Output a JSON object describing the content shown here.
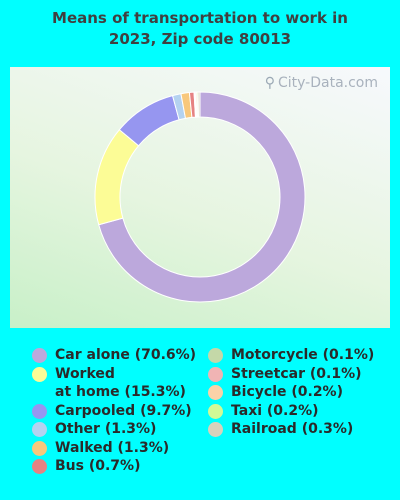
{
  "title": {
    "line1": "Means of transportation to work in",
    "line2": "2023, Zip code 80013"
  },
  "watermark": "City-Data.com",
  "chart_data": {
    "type": "pie",
    "donut": true,
    "title": "Means of transportation to work in 2023, Zip code 80013",
    "slices": [
      {
        "label": "Car alone",
        "value": 70.6,
        "color": "#bca8dc"
      },
      {
        "label": "Worked at home",
        "value": 15.3,
        "color": "#fcfc96"
      },
      {
        "label": "Carpooled",
        "value": 9.7,
        "color": "#9696f0"
      },
      {
        "label": "Other",
        "value": 1.3,
        "color": "#b4d2f0"
      },
      {
        "label": "Walked",
        "value": 1.3,
        "color": "#f8c87c"
      },
      {
        "label": "Bus",
        "value": 0.7,
        "color": "#e68282"
      },
      {
        "label": "Motorcycle",
        "value": 0.1,
        "color": "#c4d8a8"
      },
      {
        "label": "Streetcar",
        "value": 0.1,
        "color": "#f0b4b4"
      },
      {
        "label": "Bicycle",
        "value": 0.2,
        "color": "#fad2a8"
      },
      {
        "label": "Taxi",
        "value": 0.2,
        "color": "#d2fa96"
      },
      {
        "label": "Railroad",
        "value": 0.3,
        "color": "#d8d2bc"
      }
    ]
  },
  "legend": {
    "left": [
      {
        "lines": [
          "Car alone (70.6%)"
        ],
        "color": "#bca8dc"
      },
      {
        "lines": [
          "Worked",
          "at home (15.3%)"
        ],
        "color": "#fcfc96"
      },
      {
        "lines": [
          "Carpooled (9.7%)"
        ],
        "color": "#9696f0"
      },
      {
        "lines": [
          "Other (1.3%)"
        ],
        "color": "#b4d2f0"
      },
      {
        "lines": [
          "Walked (1.3%)"
        ],
        "color": "#f8c87c"
      },
      {
        "lines": [
          "Bus (0.7%)"
        ],
        "color": "#e68282"
      }
    ],
    "right": [
      {
        "lines": [
          "Motorcycle (0.1%)"
        ],
        "color": "#c4d8a8"
      },
      {
        "lines": [
          "Streetcar (0.1%)"
        ],
        "color": "#f0b4b4"
      },
      {
        "lines": [
          "Bicycle (0.2%)"
        ],
        "color": "#fad2a8"
      },
      {
        "lines": [
          "Taxi (0.2%)"
        ],
        "color": "#d2fa96"
      },
      {
        "lines": [
          "Railroad (0.3%)"
        ],
        "color": "#d8d2bc"
      }
    ]
  }
}
